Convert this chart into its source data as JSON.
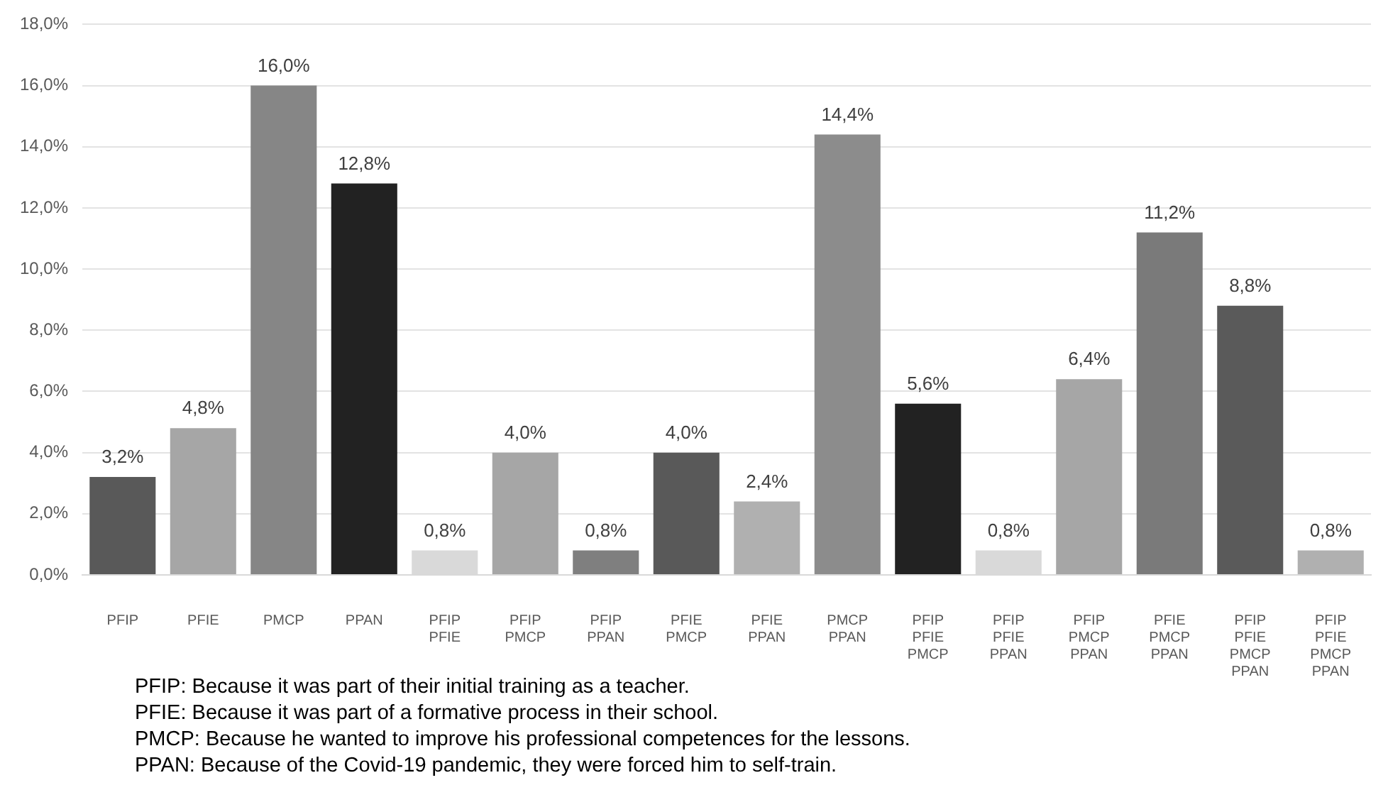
{
  "chart_data": {
    "type": "bar",
    "categories": [
      "PFIP",
      "PFIE",
      "PMCP",
      "PPAN",
      "PFIP\nPFIE",
      "PFIP\nPMCP",
      "PFIP\nPPAN",
      "PFIE\nPMCP",
      "PFIE\nPPAN",
      "PMCP\nPPAN",
      "PFIP\nPFIE\nPMCP",
      "PFIP\nPFIE\nPPAN",
      "PFIP\nPMCP\nPPAN",
      "PFIE\nPMCP\nPPAN",
      "PFIP\nPFIE\nPMCP\nPPAN",
      "PFIP\nPFIE\nPMCP\nPPAN"
    ],
    "values": [
      3.2,
      4.8,
      16.0,
      12.8,
      0.8,
      4.0,
      0.8,
      4.0,
      2.4,
      14.4,
      5.6,
      0.8,
      6.4,
      11.2,
      8.8,
      0.8
    ],
    "value_labels": [
      "3,2%",
      "4,8%",
      "16,0%",
      "12,8%",
      "0,8%",
      "4,0%",
      "0,8%",
      "4,0%",
      "2,4%",
      "14,4%",
      "5,6%",
      "0,8%",
      "6,4%",
      "11,2%",
      "8,8%",
      "0,8%"
    ],
    "colors": [
      "#595959",
      "#a6a6a6",
      "#868686",
      "#222222",
      "#d9d9d9",
      "#a6a6a6",
      "#7f7f7f",
      "#595959",
      "#b0b0b0",
      "#8c8c8c",
      "#222222",
      "#d9d9d9",
      "#a6a6a6",
      "#7a7a7a",
      "#5a5a5a",
      "#b0b0b0"
    ],
    "ylim": [
      0,
      18
    ],
    "yticks": [
      {
        "value": 0,
        "label": "0,0%"
      },
      {
        "value": 2,
        "label": "2,0%"
      },
      {
        "value": 4,
        "label": "4,0%"
      },
      {
        "value": 6,
        "label": "6,0%"
      },
      {
        "value": 8,
        "label": "8,0%"
      },
      {
        "value": 10,
        "label": "10,0%"
      },
      {
        "value": 12,
        "label": "12,0%"
      },
      {
        "value": 14,
        "label": "14,0%"
      },
      {
        "value": 16,
        "label": "16,0%"
      },
      {
        "value": 18,
        "label": "18,0%"
      }
    ],
    "grid": "y",
    "legend": false,
    "annotations": [
      "PFIP: Because it was part of their initial training as a teacher.",
      "PFIE: Because it was part of a formative process in their school.",
      "PMCP: Because he wanted to improve his professional competences for the lessons.",
      "PPAN: Because of the Covid-19 pandemic, they were forced him to self-train."
    ]
  }
}
